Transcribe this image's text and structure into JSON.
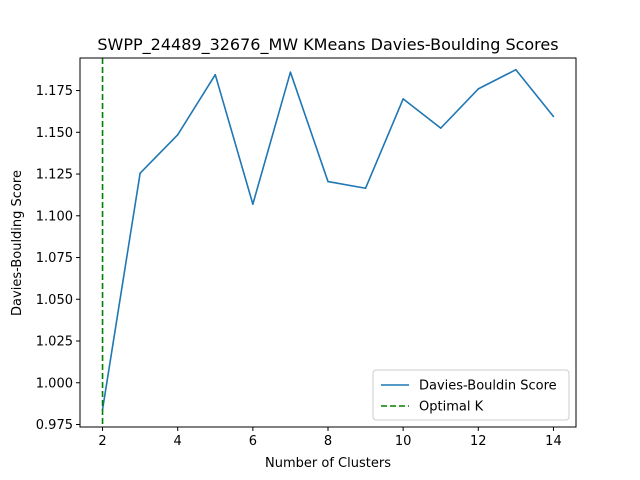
{
  "chart_data": {
    "type": "line",
    "title": "SWPP_24489_32676_MW KMeans Davies-Boulding Scores",
    "xlabel": "Number of Clusters",
    "ylabel": "Davies-Boulding Score",
    "xlim": [
      1.4,
      14.6
    ],
    "ylim": [
      0.9735,
      1.1945
    ],
    "xticks": [
      2,
      4,
      6,
      8,
      10,
      12,
      14
    ],
    "yticks": [
      0.975,
      1.0,
      1.025,
      1.05,
      1.075,
      1.1,
      1.125,
      1.15,
      1.175
    ],
    "ytick_labels": [
      "0.975",
      "1.000",
      "1.025",
      "1.050",
      "1.075",
      "1.100",
      "1.125",
      "1.150",
      "1.175"
    ],
    "grid": false,
    "legend_position": "lower right",
    "series": [
      {
        "name": "Davies-Bouldin Score",
        "color": "#1f77b4",
        "style": "solid",
        "x": [
          2,
          3,
          4,
          5,
          6,
          7,
          8,
          9,
          10,
          11,
          12,
          13,
          14
        ],
        "values": [
          0.984,
          1.1255,
          1.1485,
          1.1845,
          1.107,
          1.186,
          1.1205,
          1.1165,
          1.17,
          1.1525,
          1.176,
          1.1875,
          1.1595
        ]
      }
    ],
    "vlines": [
      {
        "name": "Optimal K",
        "x": 2,
        "color": "#008000",
        "style": "dashed"
      }
    ]
  }
}
